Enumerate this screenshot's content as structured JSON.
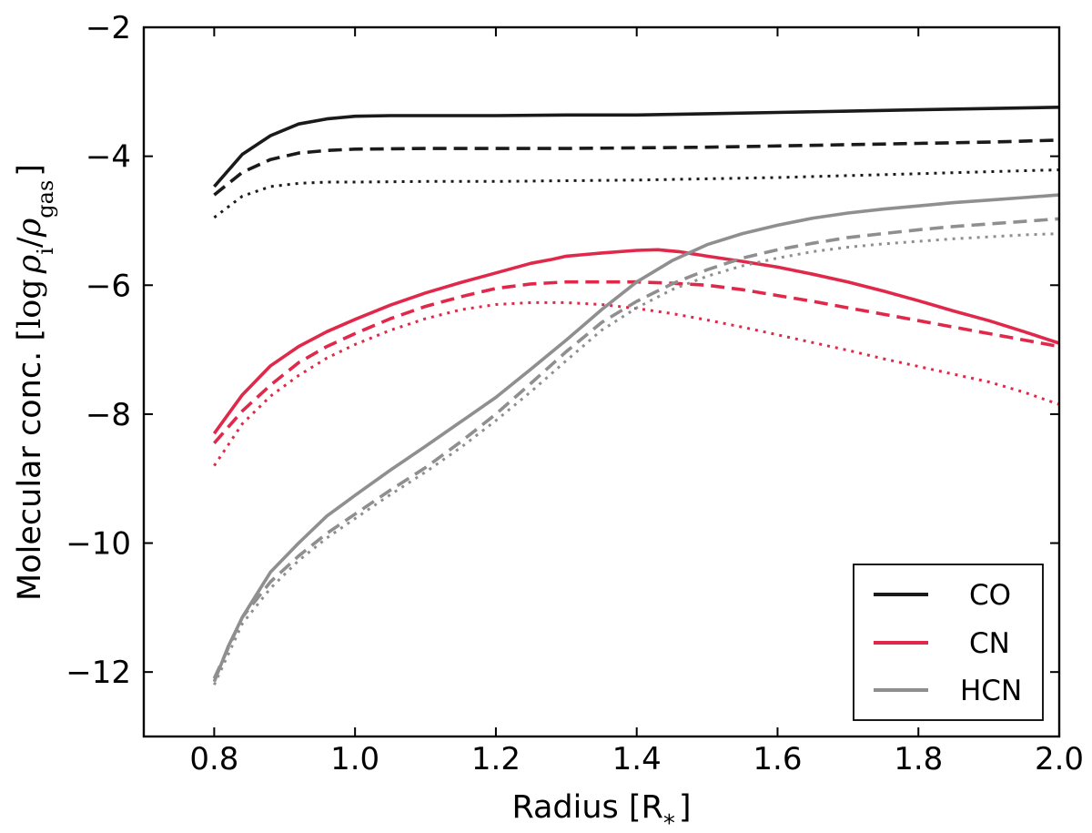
{
  "chart_data": {
    "type": "line",
    "title": "",
    "xlabel": "Radius [R",
    "xlabel_sub": "*",
    "xlabel_close": "]",
    "ylabel_prefix": "Molecular conc. [",
    "ylabel_log": "log",
    "ylabel_rho1": "ρ",
    "ylabel_sub1": "i",
    "ylabel_slash": "/",
    "ylabel_rho2": "ρ",
    "ylabel_sub2": "gas",
    "ylabel_suffix": "]",
    "xlim": [
      0.7,
      2.0
    ],
    "ylim": [
      -13,
      -2
    ],
    "xticks": [
      0.8,
      1.0,
      1.2,
      1.4,
      1.6,
      1.8,
      2.0
    ],
    "xtick_labels": [
      "0.8",
      "1.0",
      "1.2",
      "1.4",
      "1.6",
      "1.8",
      "2.0"
    ],
    "yticks": [
      -12,
      -10,
      -8,
      -6,
      -4,
      -2
    ],
    "ytick_labels": [
      "−12",
      "−10",
      "−8",
      "−6",
      "−4",
      "−2"
    ],
    "grid": false,
    "legend_position": "bottom-right",
    "legend": [
      {
        "label": "CO",
        "color": "#1a1a1a"
      },
      {
        "label": "CN",
        "color": "#e0294a"
      },
      {
        "label": "HCN",
        "color": "#8f8f8f"
      }
    ],
    "series": [
      {
        "name": "CO solid",
        "species": "CO",
        "style": "solid",
        "color": "#1a1a1a",
        "x": [
          0.8,
          0.84,
          0.88,
          0.92,
          0.96,
          1.0,
          1.05,
          1.1,
          1.2,
          1.3,
          1.4,
          1.5,
          1.6,
          1.7,
          1.8,
          1.9,
          2.0
        ],
        "y": [
          -4.47,
          -3.97,
          -3.68,
          -3.5,
          -3.42,
          -3.38,
          -3.37,
          -3.37,
          -3.37,
          -3.36,
          -3.36,
          -3.34,
          -3.32,
          -3.3,
          -3.28,
          -3.26,
          -3.24
        ]
      },
      {
        "name": "CO dashed",
        "species": "CO",
        "style": "dashed",
        "color": "#1a1a1a",
        "x": [
          0.8,
          0.84,
          0.88,
          0.92,
          0.96,
          1.0,
          1.1,
          1.2,
          1.3,
          1.4,
          1.5,
          1.6,
          1.7,
          1.8,
          1.9,
          2.0
        ],
        "y": [
          -4.6,
          -4.25,
          -4.05,
          -3.95,
          -3.91,
          -3.89,
          -3.88,
          -3.88,
          -3.88,
          -3.87,
          -3.86,
          -3.84,
          -3.82,
          -3.8,
          -3.78,
          -3.75
        ]
      },
      {
        "name": "CO dotted",
        "species": "CO",
        "style": "dotted",
        "color": "#1a1a1a",
        "x": [
          0.8,
          0.84,
          0.88,
          0.92,
          0.96,
          1.0,
          1.1,
          1.2,
          1.3,
          1.4,
          1.5,
          1.6,
          1.7,
          1.8,
          1.9,
          2.0
        ],
        "y": [
          -4.95,
          -4.62,
          -4.47,
          -4.42,
          -4.4,
          -4.4,
          -4.39,
          -4.39,
          -4.38,
          -4.37,
          -4.35,
          -4.33,
          -4.3,
          -4.27,
          -4.24,
          -4.21
        ]
      },
      {
        "name": "CN solid",
        "species": "CN",
        "style": "solid",
        "color": "#e0294a",
        "x": [
          0.8,
          0.84,
          0.88,
          0.92,
          0.96,
          1.0,
          1.05,
          1.1,
          1.15,
          1.2,
          1.25,
          1.28,
          1.3,
          1.35,
          1.4,
          1.43,
          1.46,
          1.5,
          1.55,
          1.6,
          1.65,
          1.7,
          1.75,
          1.8,
          1.85,
          1.9,
          1.95,
          2.0
        ],
        "y": [
          -8.3,
          -7.7,
          -7.25,
          -6.95,
          -6.72,
          -6.53,
          -6.31,
          -6.12,
          -5.96,
          -5.81,
          -5.66,
          -5.6,
          -5.55,
          -5.5,
          -5.46,
          -5.45,
          -5.48,
          -5.55,
          -5.63,
          -5.72,
          -5.83,
          -5.95,
          -6.09,
          -6.24,
          -6.4,
          -6.55,
          -6.72,
          -6.9
        ]
      },
      {
        "name": "CN dashed",
        "species": "CN",
        "style": "dashed",
        "color": "#e0294a",
        "x": [
          0.8,
          0.84,
          0.88,
          0.92,
          0.96,
          1.0,
          1.05,
          1.1,
          1.15,
          1.2,
          1.25,
          1.3,
          1.35,
          1.4,
          1.45,
          1.5,
          1.55,
          1.6,
          1.65,
          1.7,
          1.75,
          1.8,
          1.85,
          1.9,
          1.95,
          2.0
        ],
        "y": [
          -8.45,
          -7.95,
          -7.55,
          -7.2,
          -6.95,
          -6.75,
          -6.52,
          -6.33,
          -6.18,
          -6.05,
          -5.98,
          -5.95,
          -5.95,
          -5.95,
          -5.97,
          -6.0,
          -6.07,
          -6.16,
          -6.25,
          -6.35,
          -6.45,
          -6.55,
          -6.65,
          -6.75,
          -6.85,
          -6.95
        ]
      },
      {
        "name": "CN dotted",
        "species": "CN",
        "style": "dotted",
        "color": "#e0294a",
        "x": [
          0.8,
          0.84,
          0.88,
          0.92,
          0.96,
          1.0,
          1.05,
          1.1,
          1.15,
          1.2,
          1.25,
          1.3,
          1.35,
          1.4,
          1.45,
          1.5,
          1.55,
          1.6,
          1.65,
          1.7,
          1.75,
          1.8,
          1.85,
          1.9,
          1.95,
          2.0
        ],
        "y": [
          -8.8,
          -8.15,
          -7.72,
          -7.4,
          -7.13,
          -6.92,
          -6.7,
          -6.52,
          -6.38,
          -6.3,
          -6.27,
          -6.27,
          -6.3,
          -6.36,
          -6.44,
          -6.54,
          -6.65,
          -6.77,
          -6.89,
          -7.01,
          -7.14,
          -7.26,
          -7.38,
          -7.5,
          -7.66,
          -7.85
        ]
      },
      {
        "name": "HCN solid",
        "species": "HCN",
        "style": "solid",
        "color": "#8f8f8f",
        "x": [
          0.8,
          0.82,
          0.84,
          0.88,
          0.92,
          0.96,
          1.0,
          1.05,
          1.1,
          1.15,
          1.2,
          1.25,
          1.3,
          1.35,
          1.4,
          1.45,
          1.5,
          1.55,
          1.6,
          1.65,
          1.7,
          1.75,
          1.8,
          1.85,
          1.9,
          1.95,
          2.0
        ],
        "y": [
          -12.15,
          -11.6,
          -11.15,
          -10.45,
          -10.0,
          -9.58,
          -9.26,
          -8.87,
          -8.5,
          -8.12,
          -7.74,
          -7.3,
          -6.85,
          -6.38,
          -5.95,
          -5.62,
          -5.37,
          -5.2,
          -5.07,
          -4.96,
          -4.88,
          -4.82,
          -4.77,
          -4.72,
          -4.68,
          -4.64,
          -4.6
        ]
      },
      {
        "name": "HCN dashed",
        "species": "HCN",
        "style": "dashed",
        "color": "#8f8f8f",
        "x": [
          0.8,
          0.84,
          0.88,
          0.92,
          0.96,
          1.0,
          1.05,
          1.1,
          1.15,
          1.2,
          1.25,
          1.3,
          1.35,
          1.4,
          1.45,
          1.5,
          1.55,
          1.6,
          1.65,
          1.7,
          1.75,
          1.8,
          1.85,
          1.9,
          1.95,
          2.0
        ],
        "y": [
          -12.1,
          -11.15,
          -10.6,
          -10.2,
          -9.85,
          -9.55,
          -9.18,
          -8.83,
          -8.43,
          -8.0,
          -7.52,
          -7.03,
          -6.58,
          -6.25,
          -5.98,
          -5.76,
          -5.58,
          -5.45,
          -5.35,
          -5.26,
          -5.2,
          -5.14,
          -5.09,
          -5.05,
          -5.01,
          -4.97
        ]
      },
      {
        "name": "HCN dotted",
        "species": "HCN",
        "style": "dotted",
        "color": "#8f8f8f",
        "x": [
          0.8,
          0.84,
          0.88,
          0.92,
          0.96,
          1.0,
          1.05,
          1.1,
          1.15,
          1.2,
          1.25,
          1.3,
          1.35,
          1.4,
          1.45,
          1.5,
          1.55,
          1.6,
          1.65,
          1.7,
          1.75,
          1.8,
          1.85,
          1.9,
          1.95,
          2.0
        ],
        "y": [
          -12.2,
          -11.25,
          -10.7,
          -10.27,
          -9.92,
          -9.62,
          -9.25,
          -8.9,
          -8.52,
          -8.1,
          -7.65,
          -7.17,
          -6.7,
          -6.35,
          -6.07,
          -5.86,
          -5.7,
          -5.58,
          -5.48,
          -5.41,
          -5.36,
          -5.32,
          -5.28,
          -5.25,
          -5.22,
          -5.2
        ]
      }
    ]
  }
}
